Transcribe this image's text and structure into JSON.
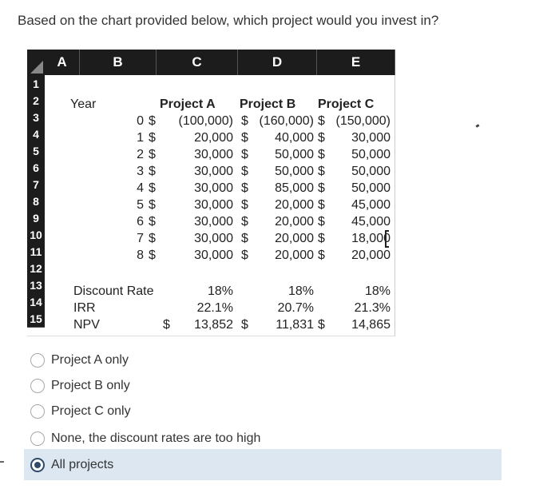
{
  "question": "Based on the chart provided below, which project would you invest in?",
  "sheet": {
    "columns": [
      "A",
      "B",
      "C",
      "D",
      "E"
    ],
    "rows": [
      "1",
      "2",
      "3",
      "4",
      "5",
      "6",
      "7",
      "8",
      "9",
      "10",
      "11",
      "12",
      "13",
      "14",
      "15"
    ],
    "year_label": "Year",
    "headers": [
      "Project A",
      "Project B",
      "Project C"
    ],
    "years": [
      "0",
      "1",
      "2",
      "3",
      "4",
      "5",
      "6",
      "7",
      "8"
    ],
    "dollar": "$",
    "project_a": [
      "(100,000)",
      "20,000",
      "30,000",
      "30,000",
      "30,000",
      "30,000",
      "30,000",
      "30,000",
      "30,000"
    ],
    "project_b": [
      "(160,000)",
      "40,000",
      "50,000",
      "50,000",
      "85,000",
      "20,000",
      "20,000",
      "20,000",
      "20,000"
    ],
    "project_c": [
      "(150,000)",
      "30,000",
      "50,000",
      "50,000",
      "50,000",
      "45,000",
      "45,000",
      "18,000",
      "20,000"
    ],
    "metrics": {
      "discount_label": "Discount Rate",
      "irr_label": "IRR",
      "npv_label": "NPV",
      "discount": [
        "18%",
        "18%",
        "18%"
      ],
      "irr": [
        "22.1%",
        "20.7%",
        "21.3%"
      ],
      "npv": [
        "13,852",
        "11,831",
        "14,865"
      ]
    }
  },
  "options": [
    {
      "label": "Project A only",
      "selected": false
    },
    {
      "label": "Project B only",
      "selected": false
    },
    {
      "label": "Project C only",
      "selected": false
    },
    {
      "label": "None, the discount rates are too high",
      "selected": false
    },
    {
      "label": "All projects",
      "selected": true
    }
  ],
  "colors": {
    "header_bg": "#1c1c1c",
    "selected_bg": "#dce7f2",
    "radio_selected": "#2f4a6a"
  }
}
